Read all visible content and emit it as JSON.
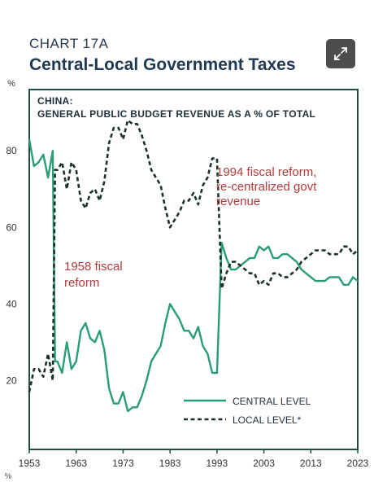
{
  "header": {
    "chart_label": "CHART 17A",
    "title": "Central-Local Government Taxes"
  },
  "expand_icon": "expand-arrows-icon",
  "colors": {
    "frame": "#1e4d3f",
    "central": "#2a9c78",
    "local": "#1a3328",
    "annotation": "#b53a3a"
  },
  "chart_data": {
    "type": "line",
    "subtitle_line1": "CHINA:",
    "subtitle_line2": "GENERAL PUBLIC BUDGET REVENUE AS A % OF TOTAL",
    "ylabel": "%",
    "xlabel": "",
    "xlim": [
      1953,
      2023
    ],
    "ylim": [
      2,
      96
    ],
    "x_ticks": [
      1953,
      1963,
      1973,
      1983,
      1993,
      2003,
      2013,
      2023
    ],
    "x_tick_labels": [
      "1953",
      "1963",
      "1973",
      "1983",
      "1993",
      "2003",
      "2013",
      "2023"
    ],
    "y_ticks": [
      20,
      40,
      60,
      80
    ],
    "y_tick_labels": [
      "20",
      "40",
      "60",
      "80"
    ],
    "legend_position": "bottom-right",
    "series": [
      {
        "name": "CENTRAL LEVEL",
        "style": "solid",
        "x": [
          1953,
          1954,
          1955,
          1956,
          1957,
          1958,
          1958.5,
          1959,
          1960,
          1961,
          1962,
          1963,
          1964,
          1965,
          1966,
          1967,
          1968,
          1969,
          1970,
          1971,
          1972,
          1973,
          1974,
          1975,
          1976,
          1977,
          1978,
          1979,
          1980,
          1981,
          1982,
          1983,
          1984,
          1985,
          1986,
          1987,
          1988,
          1989,
          1990,
          1991,
          1992,
          1993,
          1994,
          1995,
          1996,
          1997,
          1998,
          1999,
          2000,
          2001,
          2002,
          2003,
          2004,
          2005,
          2006,
          2007,
          2008,
          2009,
          2010,
          2011,
          2012,
          2013,
          2014,
          2015,
          2016,
          2017,
          2018,
          2019,
          2020,
          2021,
          2022,
          2023
        ],
        "y": [
          83,
          76,
          77,
          79,
          73,
          80,
          25,
          25,
          22,
          30,
          23,
          25,
          33,
          35,
          31,
          30,
          33,
          28,
          18,
          14,
          14,
          17,
          12,
          13,
          13,
          16,
          20,
          25,
          27,
          29,
          35,
          40,
          38,
          36,
          33,
          33,
          31,
          34,
          29,
          27,
          22,
          22,
          56,
          52,
          49,
          49,
          50,
          51,
          52,
          52,
          55,
          54,
          55,
          52,
          52,
          53,
          53,
          52,
          51,
          49,
          48,
          47,
          46,
          46,
          46,
          47,
          47,
          47,
          45,
          45,
          47,
          46
        ]
      },
      {
        "name": "LOCAL LEVEL*",
        "style": "dashed",
        "x": [
          1953,
          1954,
          1955,
          1956,
          1957,
          1958,
          1958.5,
          1959,
          1960,
          1961,
          1962,
          1963,
          1964,
          1965,
          1966,
          1967,
          1968,
          1969,
          1970,
          1971,
          1972,
          1973,
          1974,
          1975,
          1976,
          1977,
          1978,
          1979,
          1980,
          1981,
          1982,
          1983,
          1984,
          1985,
          1986,
          1987,
          1988,
          1989,
          1990,
          1991,
          1992,
          1993,
          1994,
          1995,
          1996,
          1997,
          1998,
          1999,
          2000,
          2001,
          2002,
          2003,
          2004,
          2005,
          2006,
          2007,
          2008,
          2009,
          2010,
          2011,
          2012,
          2013,
          2014,
          2015,
          2016,
          2017,
          2018,
          2019,
          2020,
          2021,
          2022,
          2023
        ],
        "y": [
          17,
          23,
          23,
          21,
          27,
          20,
          75,
          75,
          77,
          70,
          77,
          75,
          67,
          65,
          69,
          70,
          67,
          72,
          82,
          86,
          86,
          83,
          88,
          87,
          87,
          84,
          80,
          75,
          73,
          71,
          65,
          60,
          62,
          64,
          67,
          67,
          69,
          66,
          71,
          73,
          78,
          78,
          44,
          48,
          51,
          51,
          50,
          49,
          48,
          48,
          45,
          46,
          45,
          48,
          48,
          47,
          47,
          48,
          49,
          51,
          52,
          53,
          54,
          54,
          54,
          53,
          53,
          53,
          55,
          55,
          53,
          54
        ]
      }
    ],
    "annotations": [
      {
        "lines": [
          "1958 fiscal",
          "reform"
        ]
      },
      {
        "lines": [
          "1994 fiscal reform,",
          "re-centralized govt",
          "revenue"
        ]
      }
    ],
    "bottom_left_fragment": "%"
  }
}
